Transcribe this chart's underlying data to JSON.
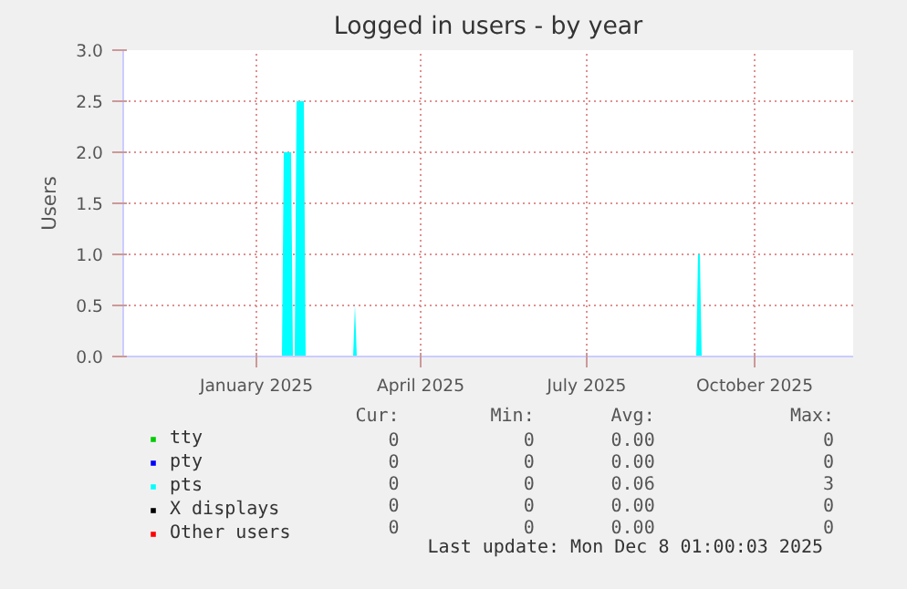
{
  "chart_data": {
    "type": "area",
    "title": "Logged in users - by year",
    "ylabel": "Users",
    "xlim": [
      "2024-10-20",
      "2025-11-24"
    ],
    "xticks": [
      {
        "value": "2025-01-01",
        "label": "January 2025"
      },
      {
        "value": "2025-04-01",
        "label": "April 2025"
      },
      {
        "value": "2025-07-01",
        "label": "July 2025"
      },
      {
        "value": "2025-10-01",
        "label": "October 2025"
      }
    ],
    "ylim": [
      0,
      3.0
    ],
    "yticks": [
      {
        "value": 0,
        "label": "0.0"
      },
      {
        "value": 0.5,
        "label": "0.5"
      },
      {
        "value": 1.0,
        "label": "1.0"
      },
      {
        "value": 1.5,
        "label": "1.5"
      },
      {
        "value": 2.0,
        "label": "2.0"
      },
      {
        "value": 2.5,
        "label": "2.5"
      },
      {
        "value": 3.0,
        "label": "3.0"
      }
    ],
    "grid": true,
    "legend": "bottom",
    "series": [
      {
        "name": "tty",
        "color": "#00cc00"
      },
      {
        "name": "pty",
        "color": "#0000ff"
      },
      {
        "name": "pts",
        "color": "#00ffff",
        "x": [
          "2024-10-20",
          "2025-01-15",
          "2025-01-16",
          "2025-01-20",
          "2025-01-21",
          "2025-01-22",
          "2025-01-23",
          "2025-01-27",
          "2025-01-28",
          "2025-02-23",
          "2025-02-24",
          "2025-02-25",
          "2025-08-30",
          "2025-08-31",
          "2025-09-01",
          "2025-09-02",
          "2025-11-24"
        ],
        "values": [
          0,
          0,
          2.0,
          2.0,
          0,
          0,
          2.5,
          2.5,
          0,
          0,
          0.5,
          0,
          0,
          1.0,
          1.0,
          0,
          0
        ]
      },
      {
        "name": "X displays",
        "color": "#000000"
      },
      {
        "name": "Other users",
        "color": "#ff0000"
      }
    ],
    "annotations": [
      "Cur:",
      "Min:",
      "Avg:",
      "Max:",
      "0",
      "0",
      "0.00",
      "0",
      "0",
      "0",
      "0.00",
      "0",
      "0",
      "0",
      "0.06",
      "3",
      "0",
      "0",
      "0.00",
      "0",
      "0",
      "0",
      "0.00",
      "0",
      "Last update: Mon Dec  8 01:00:03 2025"
    ]
  }
}
